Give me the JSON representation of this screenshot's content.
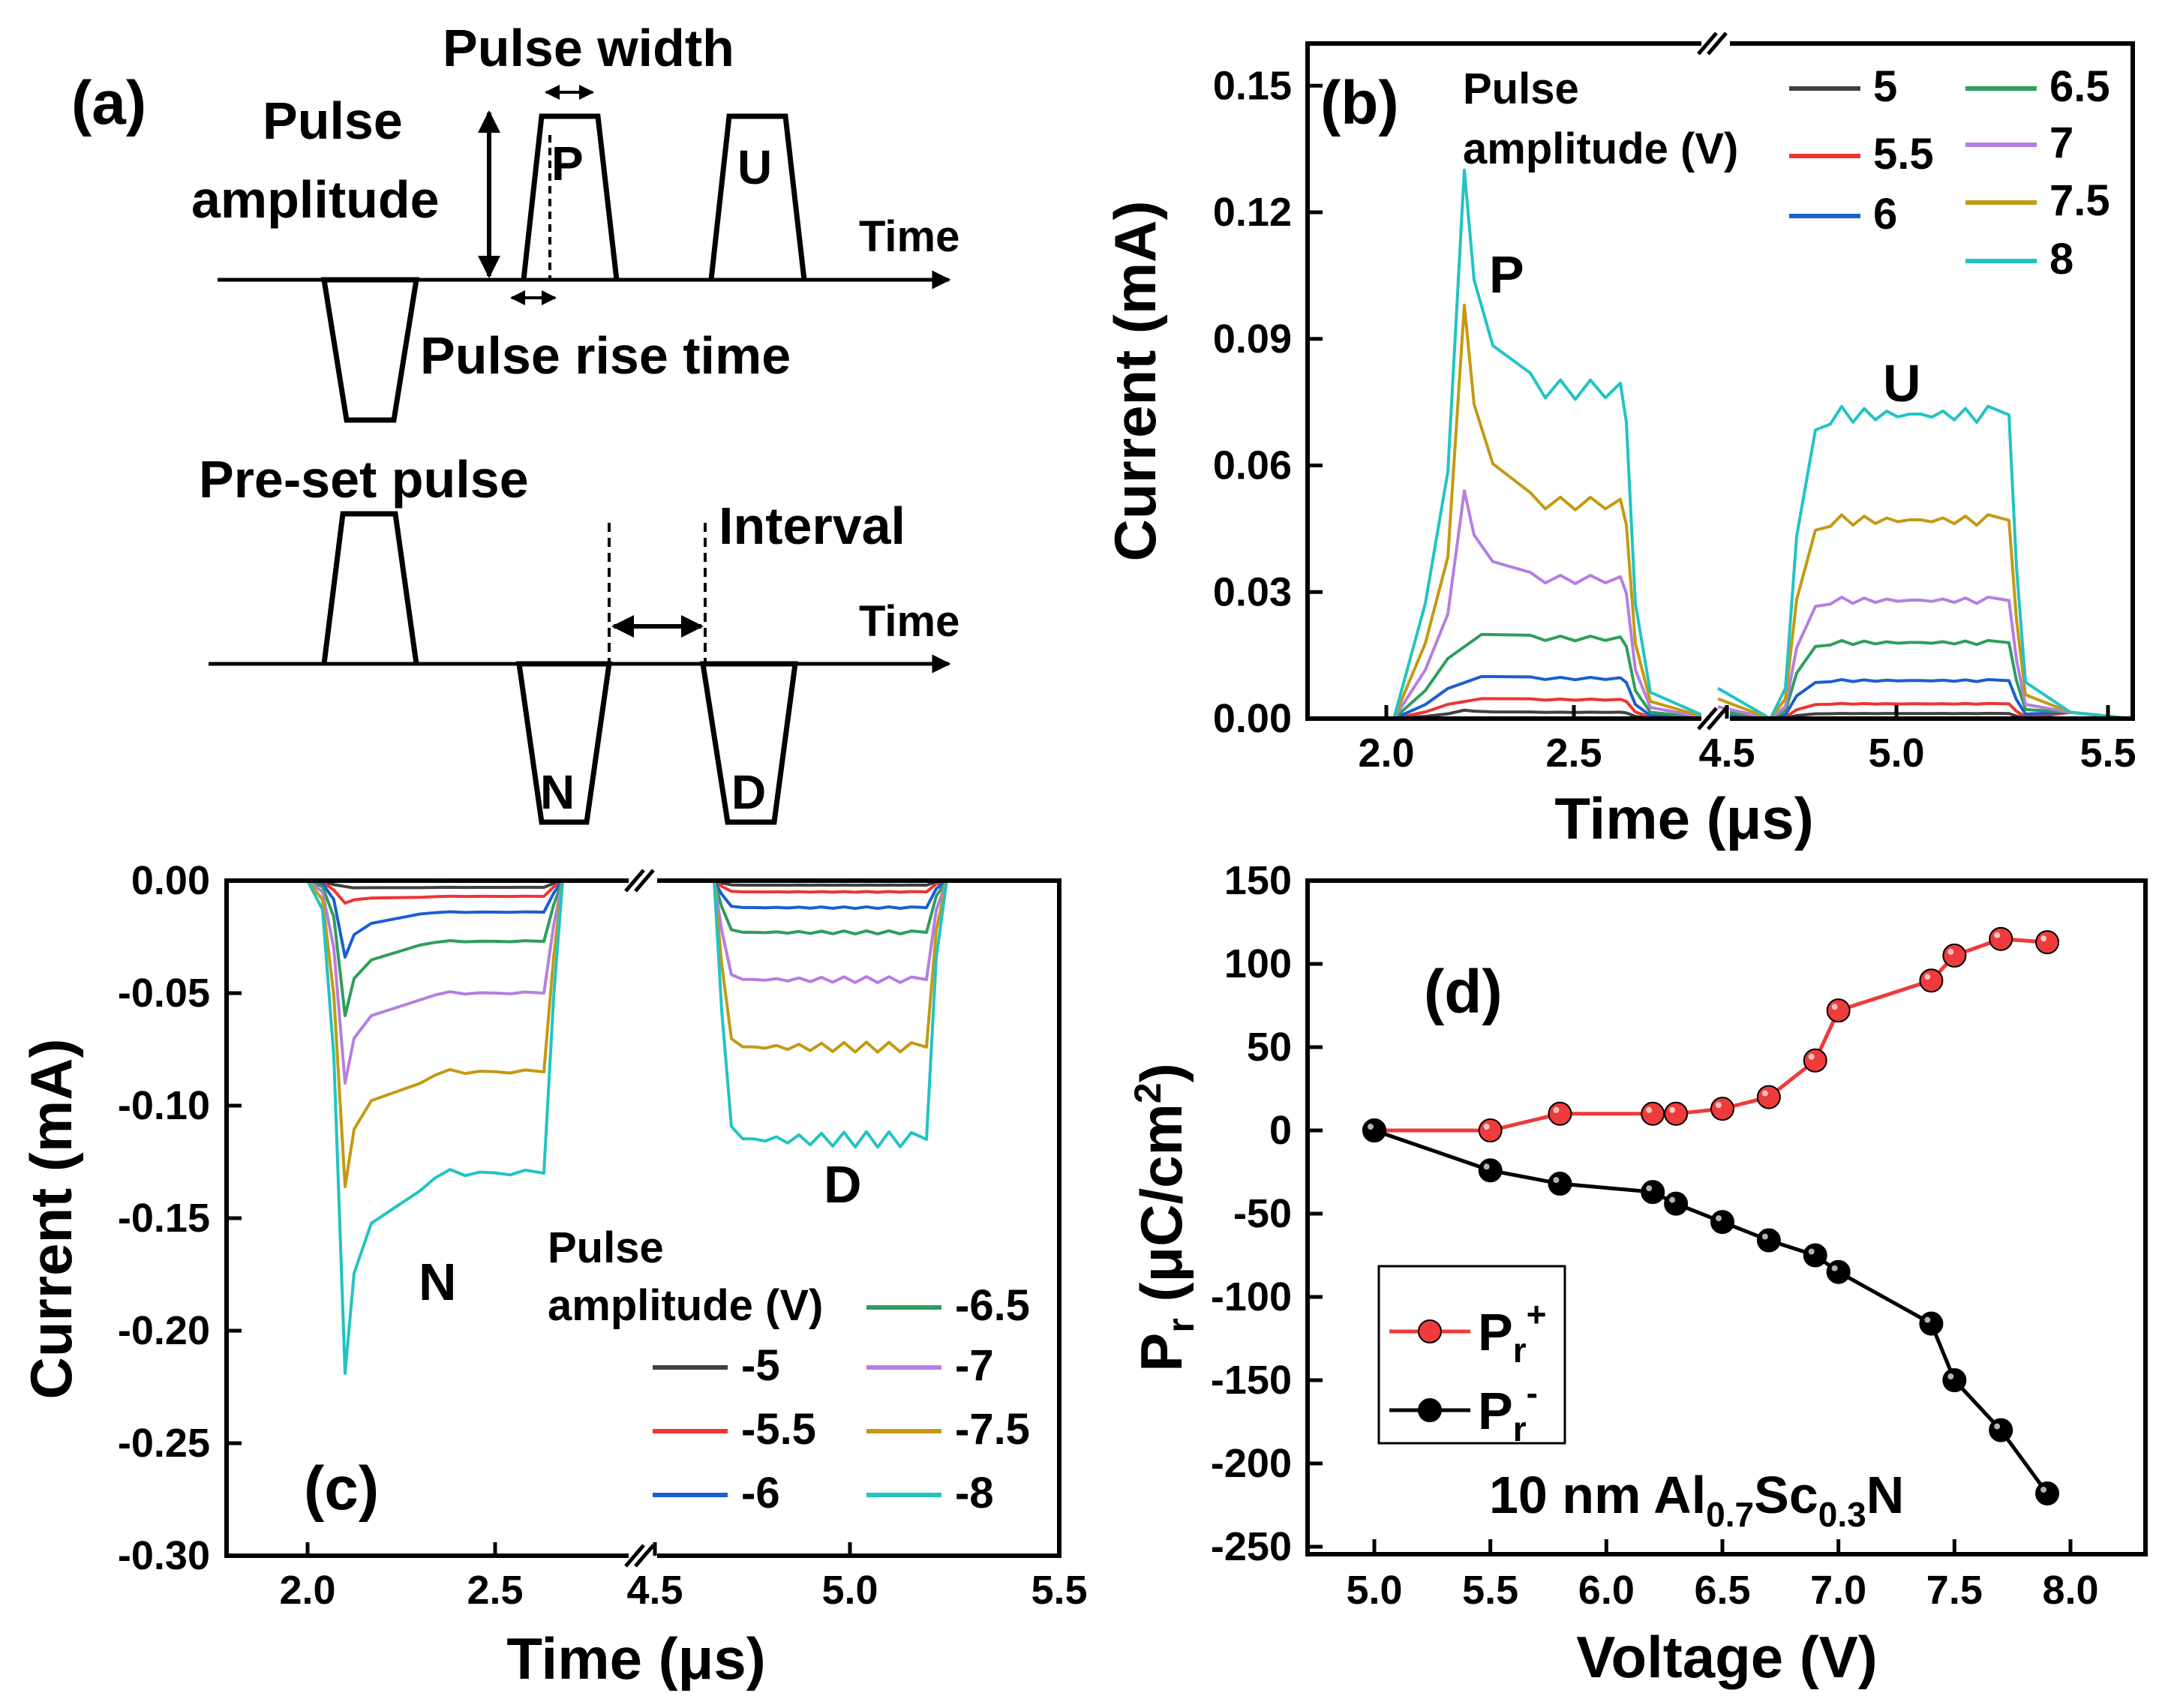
{
  "panel_a": {
    "label": "(a)",
    "pulse_width": "Pulse width",
    "pulse_amplitude": [
      "Pulse",
      "amplitude"
    ],
    "pulse_rise_time": "Pulse rise time",
    "preset_pulse": "Pre-set pulse",
    "interval": "Interval",
    "time": "Time",
    "pulses": [
      "P",
      "U",
      "N",
      "D"
    ]
  },
  "colors": {
    "5": "#404040",
    "5.5": "#ee3434",
    "6": "#1a5fcf",
    "6.5": "#2e9e5b",
    "7": "#b57ee0",
    "7.5": "#c39a12",
    "8": "#22c3c3",
    "red_series": "#ee3b3b",
    "black_series": "#000000"
  },
  "chart_data": [
    {
      "panel": "(b)",
      "type": "line",
      "title": "",
      "xlabel": "Time (μs)",
      "ylabel": "Current (mA)",
      "x_ticks": [
        "2.0",
        "2.5",
        "4.5",
        "5.0",
        "5.5"
      ],
      "y_ticks": [
        "0.00",
        "0.03",
        "0.06",
        "0.09",
        "0.12",
        "0.15"
      ],
      "ylim": [
        0,
        0.16
      ],
      "legend_title": [
        "Pulse",
        "amplitude (V)"
      ],
      "pulse_labels": [
        "P",
        "U"
      ],
      "series": [
        {
          "name": "5",
          "color_key": "5",
          "p_peak": 0.002,
          "p_plateau": 0.0015,
          "u_plateau": 0.0012
        },
        {
          "name": "5.5",
          "color_key": "5.5",
          "p_peak": 0.005,
          "p_plateau": 0.0045,
          "u_plateau": 0.0035
        },
        {
          "name": "6",
          "color_key": "6",
          "p_peak": 0.011,
          "p_plateau": 0.0095,
          "u_plateau": 0.009
        },
        {
          "name": "6.5",
          "color_key": "6.5",
          "p_peak": 0.021,
          "p_plateau": 0.019,
          "u_plateau": 0.018
        },
        {
          "name": "7",
          "color_key": "7",
          "p_peak": 0.054,
          "p_plateau": 0.033,
          "u_plateau": 0.028
        },
        {
          "name": "7.5",
          "color_key": "7.5",
          "p_peak": 0.098,
          "p_plateau": 0.051,
          "u_plateau": 0.047
        },
        {
          "name": "8",
          "color_key": "8",
          "p_peak": 0.13,
          "p_plateau": 0.078,
          "u_plateau": 0.072
        }
      ]
    },
    {
      "panel": "(c)",
      "type": "line",
      "title": "",
      "xlabel": "Time (μs)",
      "ylabel": "Current (mA)",
      "x_ticks": [
        "2.0",
        "2.5",
        "4.5",
        "5.0",
        "5.5"
      ],
      "y_ticks": [
        "0.00",
        "-0.05",
        "-0.10",
        "-0.15",
        "-0.20",
        "-0.25",
        "-0.30"
      ],
      "ylim": [
        -0.3,
        0
      ],
      "legend_title": [
        "Pulse",
        "amplitude (V)"
      ],
      "pulse_labels": [
        "N",
        "D"
      ],
      "series": [
        {
          "name": "-5",
          "color_key": "5",
          "n_peak": -0.003,
          "n_plateau": -0.003,
          "d_plateau": -0.002
        },
        {
          "name": "-5.5",
          "color_key": "5.5",
          "n_peak": -0.01,
          "n_plateau": -0.007,
          "d_plateau": -0.005
        },
        {
          "name": "-6",
          "color_key": "6",
          "n_peak": -0.034,
          "n_plateau": -0.014,
          "d_plateau": -0.012
        },
        {
          "name": "-6.5",
          "color_key": "6.5",
          "n_peak": -0.06,
          "n_plateau": -0.027,
          "d_plateau": -0.023
        },
        {
          "name": "-7",
          "color_key": "7",
          "n_peak": -0.09,
          "n_plateau": -0.05,
          "d_plateau": -0.044
        },
        {
          "name": "-7.5",
          "color_key": "7.5",
          "n_peak": -0.136,
          "n_plateau": -0.085,
          "d_plateau": -0.074
        },
        {
          "name": "-8",
          "color_key": "8",
          "n_peak": -0.219,
          "n_plateau": -0.13,
          "d_plateau": -0.115
        }
      ]
    },
    {
      "panel": "(d)",
      "type": "scatter",
      "title": "",
      "annotation": "10 nm Al0.7Sc0.3N",
      "xlabel": "Voltage (V)",
      "ylabel": "Pr (μC/cm2)",
      "x_ticks": [
        "5.0",
        "5.5",
        "6.0",
        "6.5",
        "7.0",
        "7.5",
        "8.0"
      ],
      "y_ticks": [
        "150",
        "100",
        "50",
        "0",
        "-50",
        "-100",
        "-150",
        "-200",
        "-250"
      ],
      "xlim": [
        4.75,
        8.15
      ],
      "ylim": [
        -250,
        150
      ],
      "series": [
        {
          "name": "Pr+",
          "color_key": "red_series",
          "x": [
            5.0,
            5.5,
            5.8,
            6.2,
            6.3,
            6.5,
            6.7,
            6.9,
            7.0,
            7.4,
            7.5,
            7.7,
            7.9
          ],
          "y": [
            0,
            0,
            10,
            10,
            10,
            13,
            20,
            42,
            72,
            90,
            105,
            115,
            113
          ]
        },
        {
          "name": "Pr-",
          "color_key": "black_series",
          "x": [
            5.0,
            5.5,
            5.8,
            6.2,
            6.3,
            6.5,
            6.7,
            6.9,
            7.0,
            7.4,
            7.5,
            7.7,
            7.9
          ],
          "y": [
            0,
            -24,
            -32,
            -37,
            -44,
            -55,
            -66,
            -75,
            -85,
            -116,
            -150,
            -180,
            -218
          ]
        }
      ]
    }
  ]
}
